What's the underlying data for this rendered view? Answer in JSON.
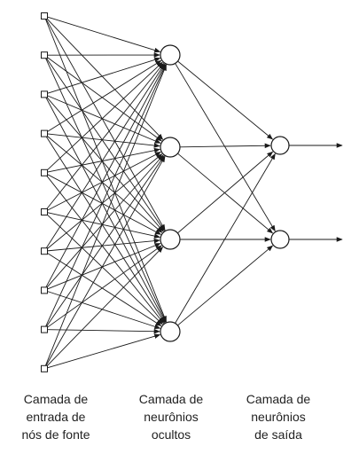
{
  "diagram": {
    "layers": [
      {
        "id": "input",
        "type": "source",
        "node_count": 10,
        "caption": "Camada de\nentrada de\nnós de fonte"
      },
      {
        "id": "hidden",
        "type": "neuron",
        "node_count": 4,
        "caption": "Camada de\nneurônios\nocultos"
      },
      {
        "id": "output",
        "type": "neuron",
        "node_count": 2,
        "caption": "Camada de\nneurônios\nde saída"
      }
    ],
    "connectivity": "fully-connected",
    "output_arrows": true,
    "colors": {
      "line": "#1a1a1a",
      "node_fill": "#ffffff",
      "text": "#222222"
    }
  }
}
